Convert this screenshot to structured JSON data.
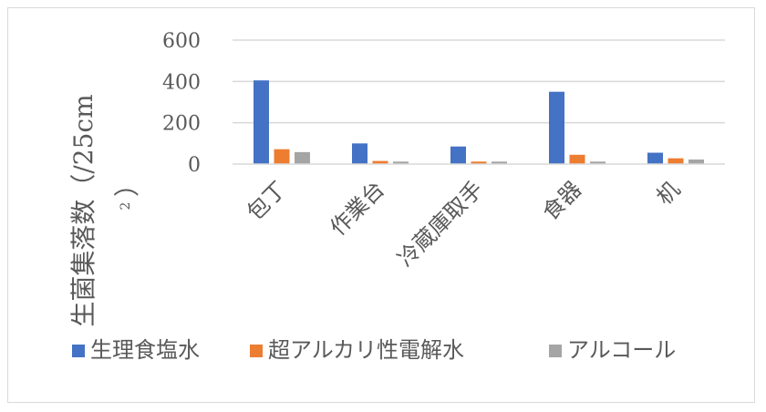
{
  "chart_data": {
    "type": "bar",
    "categories": [
      "包丁",
      "作業台",
      "冷蔵庫取手",
      "食器",
      "机"
    ],
    "series": [
      {
        "name": "生理食塩水",
        "color": "#4472c4",
        "values": [
          405,
          100,
          85,
          350,
          55
        ]
      },
      {
        "name": "超アルカリ性電解水",
        "color": "#ed7d31",
        "values": [
          72,
          15,
          12,
          45,
          28
        ]
      },
      {
        "name": "アルコール",
        "color": "#a5a5a5",
        "values": [
          58,
          12,
          12,
          12,
          22
        ]
      }
    ],
    "ylabel_main": "生菌集落数（/25cm",
    "ylabel_sup": "2",
    "ylabel_close": "）",
    "ylim": [
      0,
      600
    ],
    "yticks": [
      0,
      200,
      400,
      600
    ],
    "grid": true,
    "legend_position": "bottom"
  }
}
